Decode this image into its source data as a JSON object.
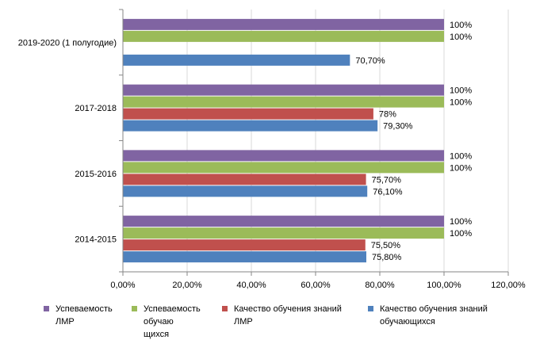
{
  "chart_data": {
    "type": "bar",
    "orientation": "horizontal",
    "categories": [
      "2019-2020 (1 полугодие)",
      "2017-2018",
      "2015-2016",
      "2014-2015"
    ],
    "series": [
      {
        "name": "Успеваемость\nЛМР",
        "color": "#8064A2",
        "values": [
          100,
          100,
          100,
          100
        ],
        "labels": [
          "100%",
          "100%",
          "100%",
          "100%"
        ]
      },
      {
        "name": "Успеваемость\nобучаю\nщихся",
        "color": "#9BBB59",
        "values": [
          100,
          100,
          100,
          100
        ],
        "labels": [
          "100%",
          "100%",
          "100%",
          "100%"
        ]
      },
      {
        "name": "Качество обучения знаний\nЛМР",
        "color": "#C0504D",
        "values": [
          null,
          78,
          75.7,
          75.5
        ],
        "labels": [
          null,
          "78%",
          "75,70%",
          "75,50%"
        ]
      },
      {
        "name": "Качество обучения знаний\nобучающихся",
        "color": "#4F81BD",
        "values": [
          70.7,
          79.3,
          76.1,
          75.8
        ],
        "labels": [
          "70,70%",
          "79,30%",
          "76,10%",
          "75,80%"
        ]
      }
    ],
    "xlim": [
      0,
      120
    ],
    "x_ticks": [
      0,
      20,
      40,
      60,
      80,
      100,
      120
    ],
    "x_tick_labels": [
      "0,00%",
      "20,00%",
      "40,00%",
      "60,00%",
      "80,00%",
      "100,00%",
      "120,00%"
    ],
    "grid": true,
    "legend_position": "bottom"
  }
}
